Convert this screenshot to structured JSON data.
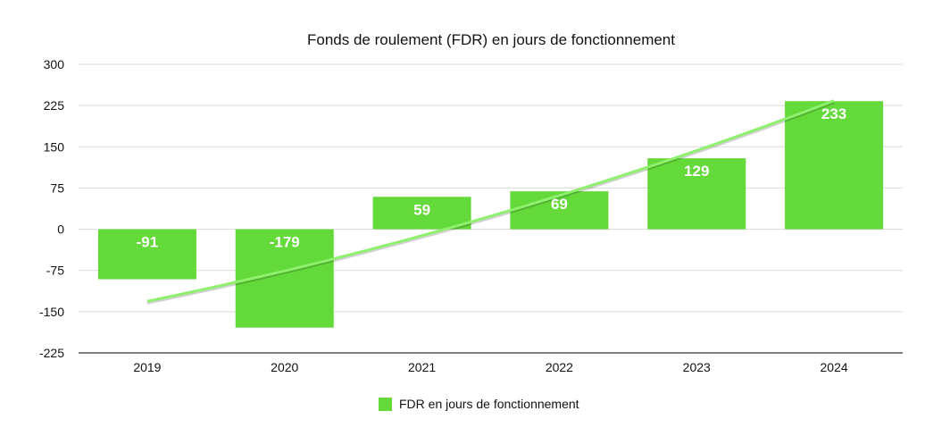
{
  "chart_data": {
    "type": "bar",
    "title": "Fonds de roulement (FDR) en jours de fonctionnement",
    "categories": [
      "2019",
      "2020",
      "2021",
      "2022",
      "2023",
      "2024"
    ],
    "series": [
      {
        "name": "FDR en jours de fonctionnement",
        "values": [
          -91,
          -179,
          59,
          69,
          129,
          233
        ]
      }
    ],
    "ylim": [
      -225,
      300
    ],
    "yticks": [
      "300",
      "225",
      "150",
      "75",
      "0",
      "-75",
      "-150",
      "-225"
    ],
    "grid": true,
    "legend": "bottom",
    "trendline": true,
    "colors": {
      "bar": "#63d93a",
      "trend": "#8ef06c",
      "grid": "#d9d9d9",
      "label": "#ffffff"
    }
  }
}
